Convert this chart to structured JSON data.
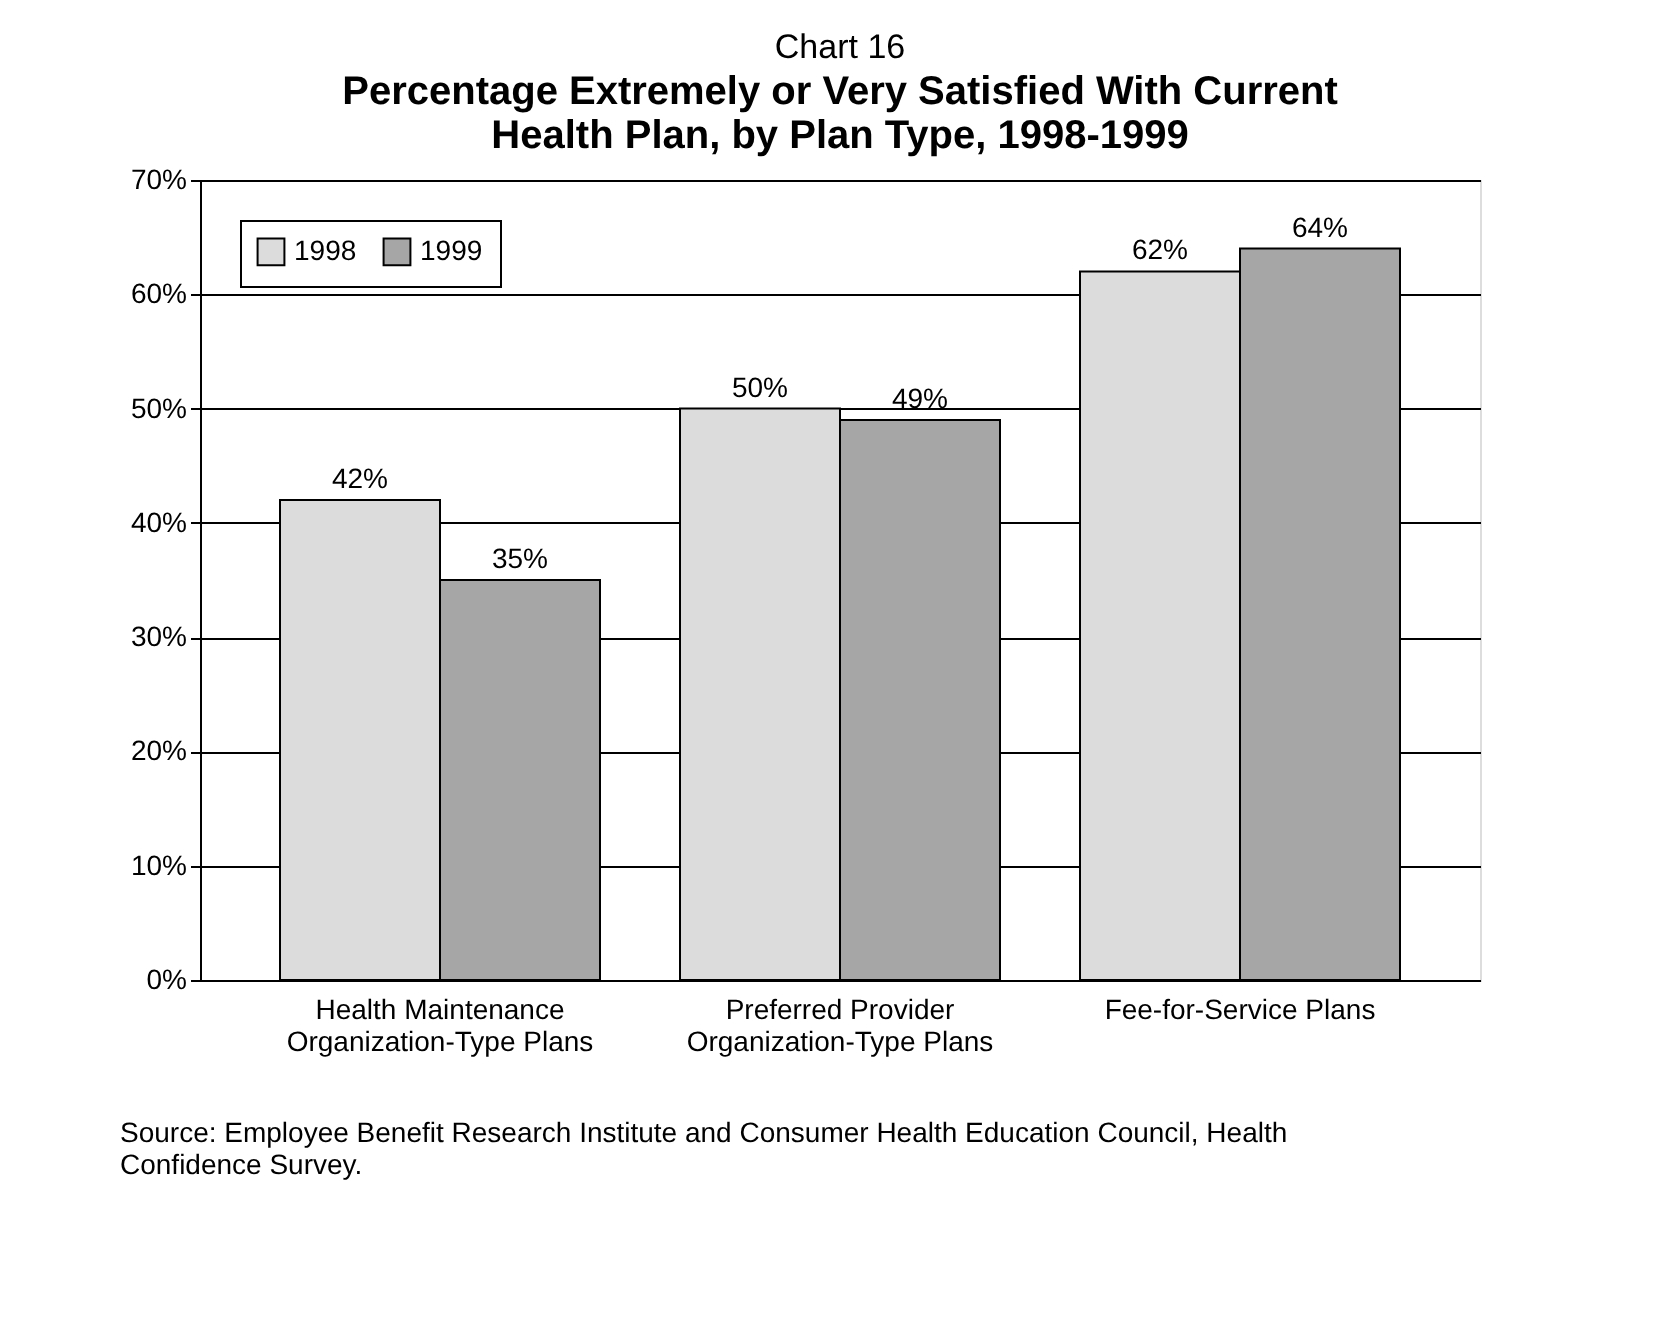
{
  "chart_data": {
    "type": "bar",
    "title": "Chart 16",
    "subtitle": "Percentage Extremely or Very Satisfied With Current Health Plan, by Plan Type, 1998-1999",
    "categories": [
      "Health Maintenance Organization-Type Plans",
      "Preferred Provider Organization-Type Plans",
      "Fee-for-Service Plans"
    ],
    "series": [
      {
        "name": "1998",
        "color": "#dcdcdc",
        "values": [
          42,
          50,
          62
        ]
      },
      {
        "name": "1999",
        "color": "#a6a6a6",
        "values": [
          35,
          49,
          64
        ]
      }
    ],
    "ylim": [
      0,
      70
    ],
    "yticks": [
      {
        "value": 0,
        "label": "0%"
      },
      {
        "value": 10,
        "label": "10%"
      },
      {
        "value": 20,
        "label": "20%"
      },
      {
        "value": 30,
        "label": "30%"
      },
      {
        "value": 40,
        "label": "40%"
      },
      {
        "value": 50,
        "label": "50%"
      },
      {
        "value": 60,
        "label": "60%"
      },
      {
        "value": 70,
        "label": "70%"
      }
    ],
    "value_labels": [
      [
        "42%",
        "50%",
        "62%"
      ],
      [
        "35%",
        "49%",
        "64%"
      ]
    ],
    "grid": "y",
    "legend": "top left",
    "annotations": [
      "Source: Employee Benefit Research Institute and Consumer Health Education Council, Health Confidence Survey."
    ]
  }
}
